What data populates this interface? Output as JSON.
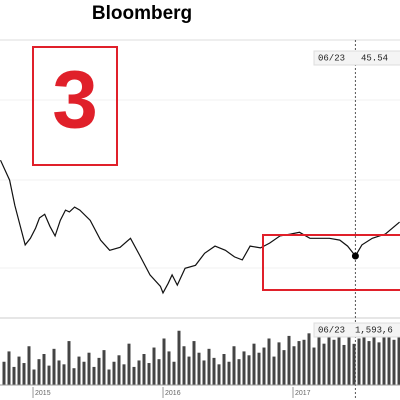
{
  "brand": "Bloomberg",
  "annotation": "3",
  "chart_data": [
    {
      "type": "line",
      "color": "#111111",
      "x": [
        2014.75,
        2014.82,
        2014.86,
        2014.9,
        2014.94,
        2014.98,
        2015.02,
        2015.05,
        2015.09,
        2015.13,
        2015.17,
        2015.21,
        2015.25,
        2015.28,
        2015.32,
        2015.36,
        2015.44,
        2015.52,
        2015.59,
        2015.67,
        2015.75,
        2015.82,
        2015.9,
        2015.98,
        2016.0,
        2016.04,
        2016.07,
        2016.11,
        2016.17,
        2016.25,
        2016.32,
        2016.4,
        2016.48,
        2016.55,
        2016.61,
        2016.67,
        2016.75,
        2016.82,
        2016.9,
        2016.98,
        2017.05,
        2017.13,
        2017.21,
        2017.28,
        2017.36,
        2017.42,
        2017.48,
        2017.53,
        2017.61,
        2017.71,
        2017.82
      ],
      "values": [
        61.5,
        58.2,
        54.0,
        50.7,
        47.4,
        48.5,
        50.2,
        51.9,
        52.5,
        50.5,
        48.9,
        51.5,
        53.2,
        52.9,
        53.7,
        53.2,
        51.5,
        48.2,
        46.5,
        47.0,
        48.5,
        45.7,
        42.4,
        40.5,
        39.4,
        41.0,
        42.4,
        40.7,
        43.5,
        44.0,
        46.0,
        47.2,
        46.5,
        45.4,
        44.9,
        47.2,
        46.9,
        47.7,
        48.9,
        49.2,
        49.5,
        48.5,
        48.5,
        48.5,
        48.2,
        47.2,
        45.54,
        47.4,
        48.5,
        49.2,
        51.2
      ],
      "xlim": [
        2014.746,
        2017.823
      ],
      "xticks": [
        2015,
        2016,
        2017
      ],
      "ylim": [
        35.71,
        81.54
      ],
      "tooltip": {
        "date": "06/23",
        "value": 45.54
      }
    },
    {
      "type": "bar",
      "color": "#444444",
      "values": [
        900000,
        1300000,
        700000,
        1100000,
        850000,
        1500000,
        600000,
        1000000,
        1200000,
        750000,
        1400000,
        950000,
        800000,
        1700000,
        650000,
        1100000,
        900000,
        1250000,
        700000,
        1050000,
        1350000,
        600000,
        900000,
        1150000,
        800000,
        1600000,
        700000,
        950000,
        1200000,
        850000,
        1450000,
        1000000,
        1800000,
        1300000,
        900000,
        2100000,
        1500000,
        1100000,
        1700000,
        1250000,
        950000,
        1400000,
        1050000,
        800000,
        1200000,
        900000,
        1500000,
        1000000,
        1300000,
        1150000,
        1600000,
        1250000,
        1450000,
        1800000,
        1100000,
        1650000,
        1350000,
        1900000,
        1500000,
        1700000,
        1750000,
        2000000,
        1450000,
        1850000,
        1600000,
        2050000,
        1750000,
        1900000,
        1550000,
        2000000,
        1593600,
        1800000,
        2150000,
        1700000,
        1950000,
        1650000,
        2200000,
        1850000,
        1750000,
        2000000
      ],
      "ylim": [
        0,
        2400000
      ],
      "tooltip": {
        "date": "06/23",
        "label": "1,593,6"
      }
    }
  ]
}
